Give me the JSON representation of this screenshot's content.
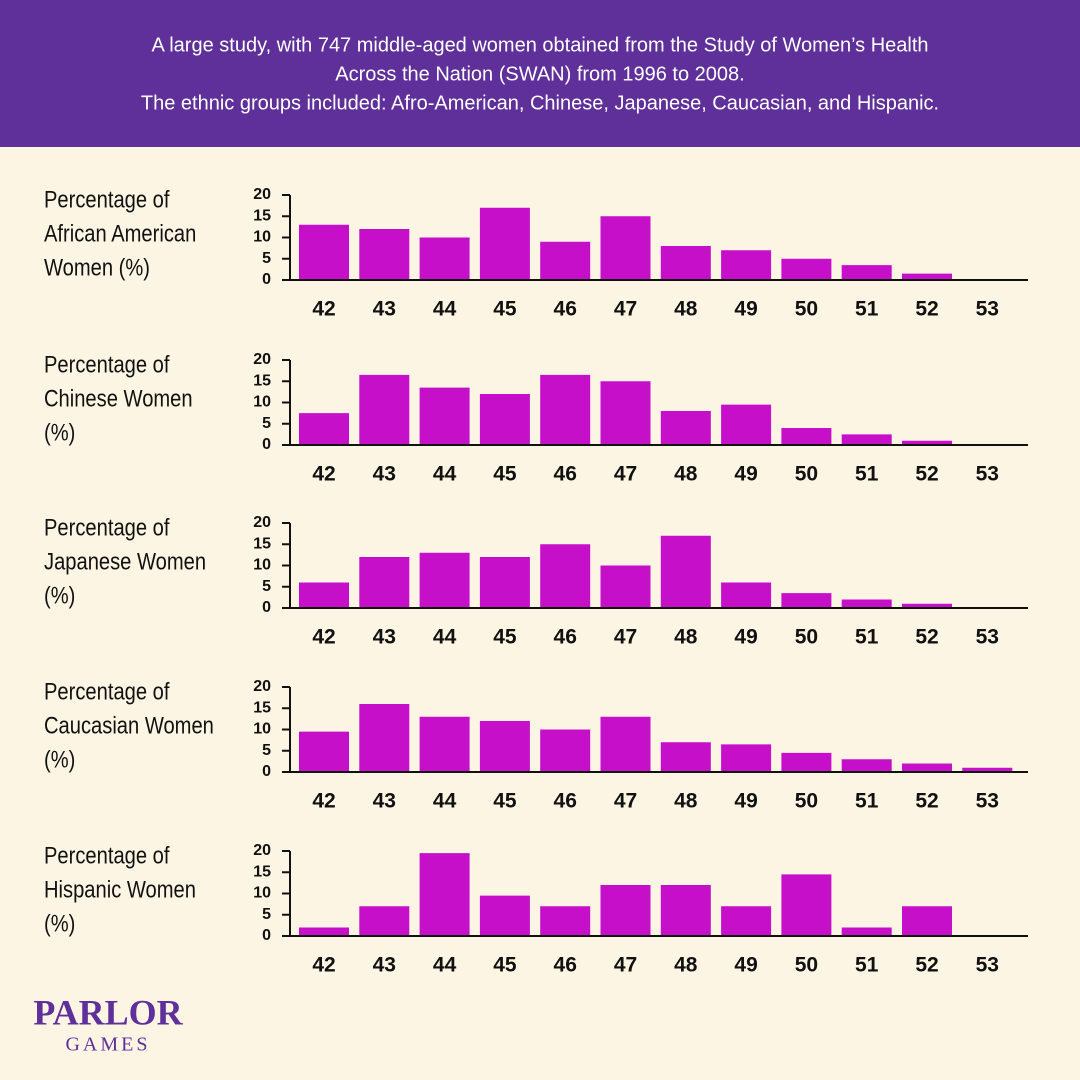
{
  "header": {
    "lines": [
      "A large study, with 747 middle-aged women obtained from the Study of Women’s Health",
      "Across the Nation (SWAN) from 1996 to 2008.",
      "The ethnic groups included: Afro-American, Chinese, Japanese, Caucasian, and Hispanic."
    ]
  },
  "logo": {
    "name": "PARLOR",
    "sub": "GAMES"
  },
  "chart_data": [
    {
      "type": "bar",
      "title": [
        "Percentage of",
        "African American",
        "Women (%)"
      ],
      "color": "#c60fc9",
      "categories": [
        "42",
        "43",
        "44",
        "45",
        "46",
        "47",
        "48",
        "49",
        "50",
        "51",
        "52",
        "53"
      ],
      "values": [
        13,
        12,
        10,
        17,
        9,
        15,
        8,
        7,
        5,
        3.5,
        1.5,
        0
      ],
      "ylim": [
        0,
        20
      ],
      "yticks": [
        0,
        5,
        10,
        15,
        20
      ]
    },
    {
      "type": "bar",
      "title": [
        "Percentage of",
        "Chinese Women",
        "(%)"
      ],
      "color": "#c60fc9",
      "categories": [
        "42",
        "43",
        "44",
        "45",
        "46",
        "47",
        "48",
        "49",
        "50",
        "51",
        "52",
        "53"
      ],
      "values": [
        7.5,
        16.5,
        13.5,
        12,
        16.5,
        15,
        8,
        9.5,
        4,
        2.5,
        1,
        0
      ],
      "ylim": [
        0,
        20
      ],
      "yticks": [
        0,
        5,
        10,
        15,
        20
      ]
    },
    {
      "type": "bar",
      "title": [
        "Percentage of",
        "Japanese Women",
        "(%)"
      ],
      "color": "#c60fc9",
      "categories": [
        "42",
        "43",
        "44",
        "45",
        "46",
        "47",
        "48",
        "49",
        "50",
        "51",
        "52",
        "53"
      ],
      "values": [
        6,
        12,
        13,
        12,
        15,
        10,
        17,
        6,
        3.5,
        2,
        1,
        0
      ],
      "ylim": [
        0,
        20
      ],
      "yticks": [
        0,
        5,
        10,
        15,
        20
      ]
    },
    {
      "type": "bar",
      "title": [
        "Percentage of",
        "Caucasian Women",
        "(%)"
      ],
      "color": "#c60fc9",
      "categories": [
        "42",
        "43",
        "44",
        "45",
        "46",
        "47",
        "48",
        "49",
        "50",
        "51",
        "52",
        "53"
      ],
      "values": [
        9.5,
        16,
        13,
        12,
        10,
        13,
        7,
        6.5,
        4.5,
        3,
        2,
        1
      ],
      "ylim": [
        0,
        20
      ],
      "yticks": [
        0,
        5,
        10,
        15,
        20
      ]
    },
    {
      "type": "bar",
      "title": [
        "Percentage of",
        "Hispanic Women",
        "(%)"
      ],
      "color": "#c60fc9",
      "categories": [
        "42",
        "43",
        "44",
        "45",
        "46",
        "47",
        "48",
        "49",
        "50",
        "51",
        "52",
        "53"
      ],
      "values": [
        2,
        7,
        19.5,
        9.5,
        7,
        12,
        12,
        7,
        14.5,
        2,
        7,
        0
      ],
      "ylim": [
        0,
        20
      ],
      "yticks": [
        0,
        5,
        10,
        15,
        20
      ]
    }
  ]
}
